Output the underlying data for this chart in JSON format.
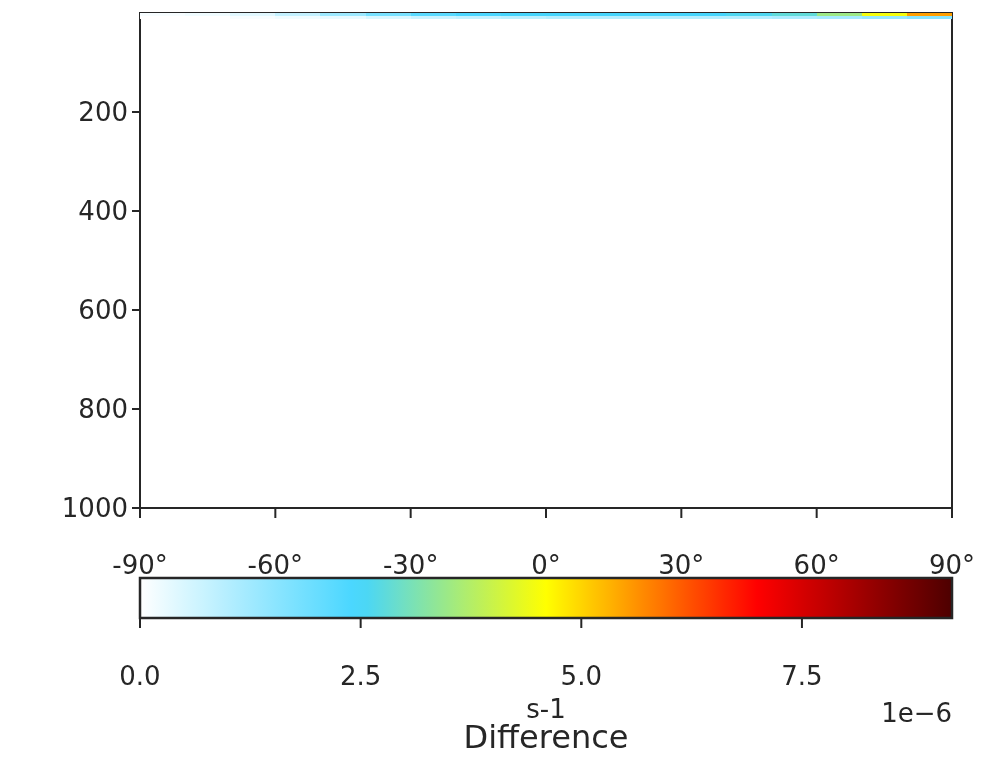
{
  "chart_data": {
    "type": "heatmap",
    "x": [
      -85,
      -75,
      -65,
      -55,
      -45,
      -35,
      -25,
      -15,
      -5,
      5,
      15,
      25,
      35,
      45,
      55,
      65,
      75,
      85
    ],
    "y": [
      3,
      9
    ],
    "cells": [
      [
        0.1,
        0.2,
        0.4,
        0.8,
        1.3,
        1.8,
        2.2,
        2.4,
        2.5,
        2.5,
        2.5,
        2.5,
        2.5,
        2.6,
        2.8,
        3.5,
        4.5,
        5.5
      ],
      [
        0,
        0,
        0.1,
        0.2,
        0.3,
        0.5,
        0.7,
        0.8,
        0.9,
        1,
        1,
        1,
        1,
        1,
        1.1,
        1.2,
        1.4,
        1.6
      ]
    ],
    "xlim": [
      -90,
      90
    ],
    "xticks": [
      {
        "value": -90,
        "label": "-90°"
      },
      {
        "value": -60,
        "label": "-60°"
      },
      {
        "value": -30,
        "label": "-30°"
      },
      {
        "value": 0,
        "label": "0°"
      },
      {
        "value": 30,
        "label": "30°"
      },
      {
        "value": 60,
        "label": "60°"
      },
      {
        "value": 90,
        "label": "90°"
      }
    ],
    "ylim": [
      1000,
      0
    ],
    "yticks": [
      200,
      400,
      600,
      800,
      1000
    ],
    "clim": [
      0,
      9.2
    ],
    "cticks": [
      {
        "value": 0,
        "label": "0.0"
      },
      {
        "value": 2.5,
        "label": "2.5"
      },
      {
        "value": 5,
        "label": "5.0"
      },
      {
        "value": 7.5,
        "label": "7.5"
      }
    ],
    "clabel": "s-1",
    "annotations": [
      "Difference",
      "1e−6"
    ]
  }
}
